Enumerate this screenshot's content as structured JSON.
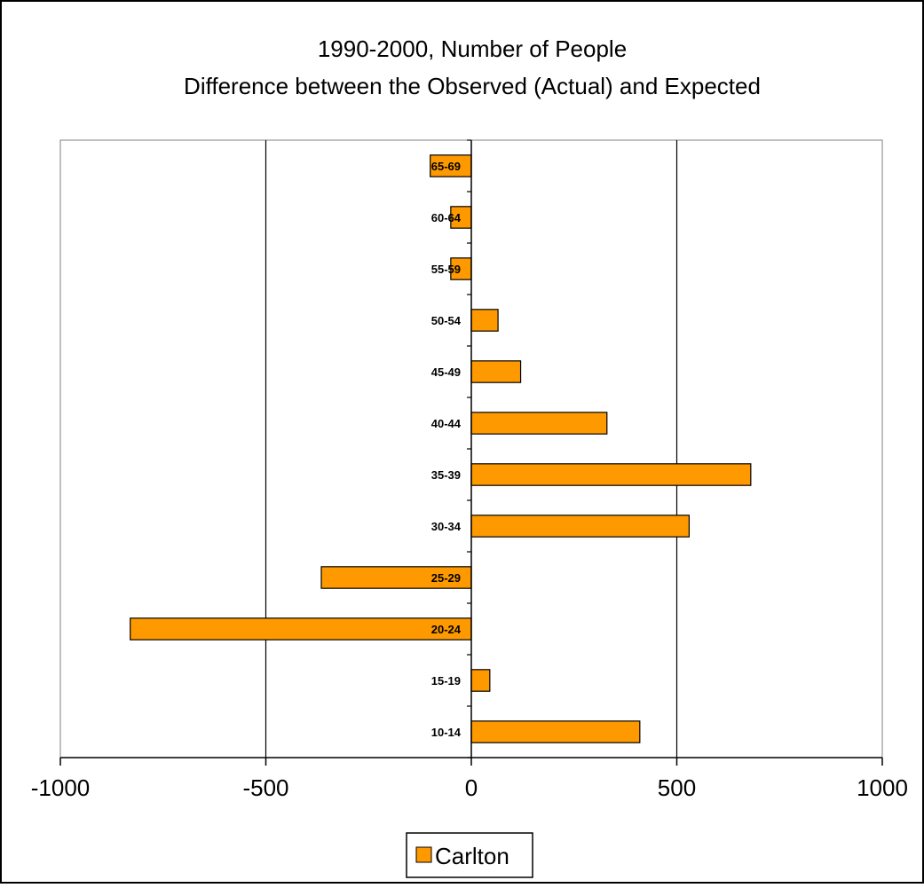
{
  "chart_data": {
    "type": "bar",
    "orientation": "horizontal",
    "title": "1990-2000, Number of People",
    "subtitle": "Difference between the Observed (Actual) and Expected",
    "xlabel": "",
    "ylabel": "",
    "xlim": [
      -1000,
      1000
    ],
    "x_ticks": [
      "-1000",
      "-500",
      "0",
      "500",
      "1000"
    ],
    "categories": [
      "10-14",
      "15-19",
      "20-24",
      "25-29",
      "30-34",
      "35-39",
      "40-44",
      "45-49",
      "50-54",
      "55-59",
      "60-64",
      "65-69"
    ],
    "series": [
      {
        "name": "Carlton",
        "color": "#FF9900",
        "values": [
          410,
          45,
          -830,
          -365,
          530,
          680,
          330,
          120,
          65,
          -50,
          -50,
          -100
        ]
      }
    ],
    "grid": "vertical major gridlines",
    "legend_position": "bottom"
  }
}
